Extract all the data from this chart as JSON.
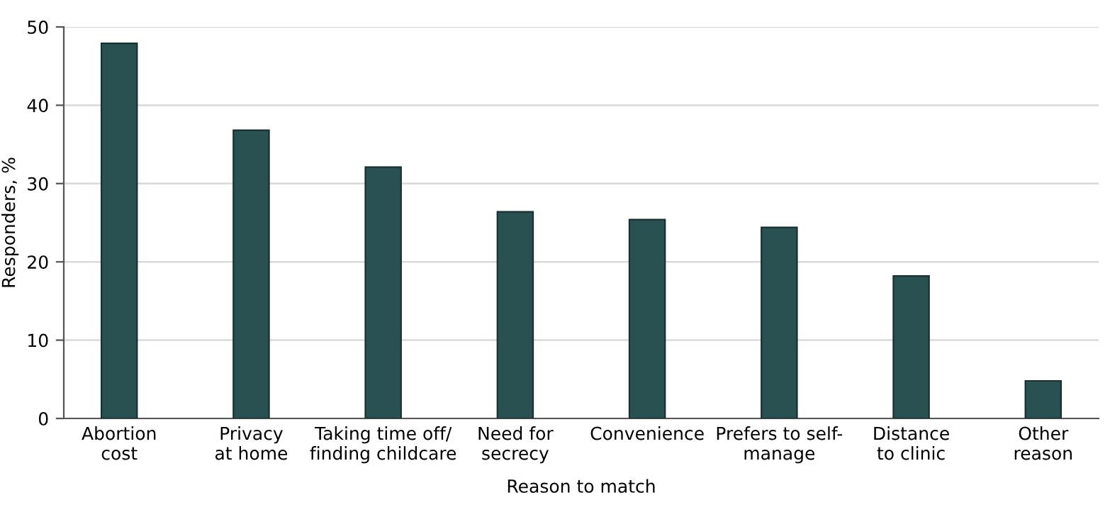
{
  "chart_data": {
    "type": "bar",
    "xlabel": "Reason to match",
    "ylabel": "Responders, %",
    "categories": [
      "Abortion\ncost",
      "Privacy\nat home",
      "Taking time off/\nfinding childcare",
      "Need for\nsecrecy",
      "Convenience",
      "Prefers to self-\nmanage",
      "Distance\nto clinic",
      "Other\nreason"
    ],
    "values": [
      47.9,
      36.8,
      32.1,
      26.4,
      25.4,
      24.4,
      18.2,
      4.8
    ],
    "color": "#2a5151",
    "ylim": [
      0,
      50
    ],
    "yticks": [
      0,
      10,
      20,
      30,
      40,
      50
    ],
    "grid": "y"
  }
}
